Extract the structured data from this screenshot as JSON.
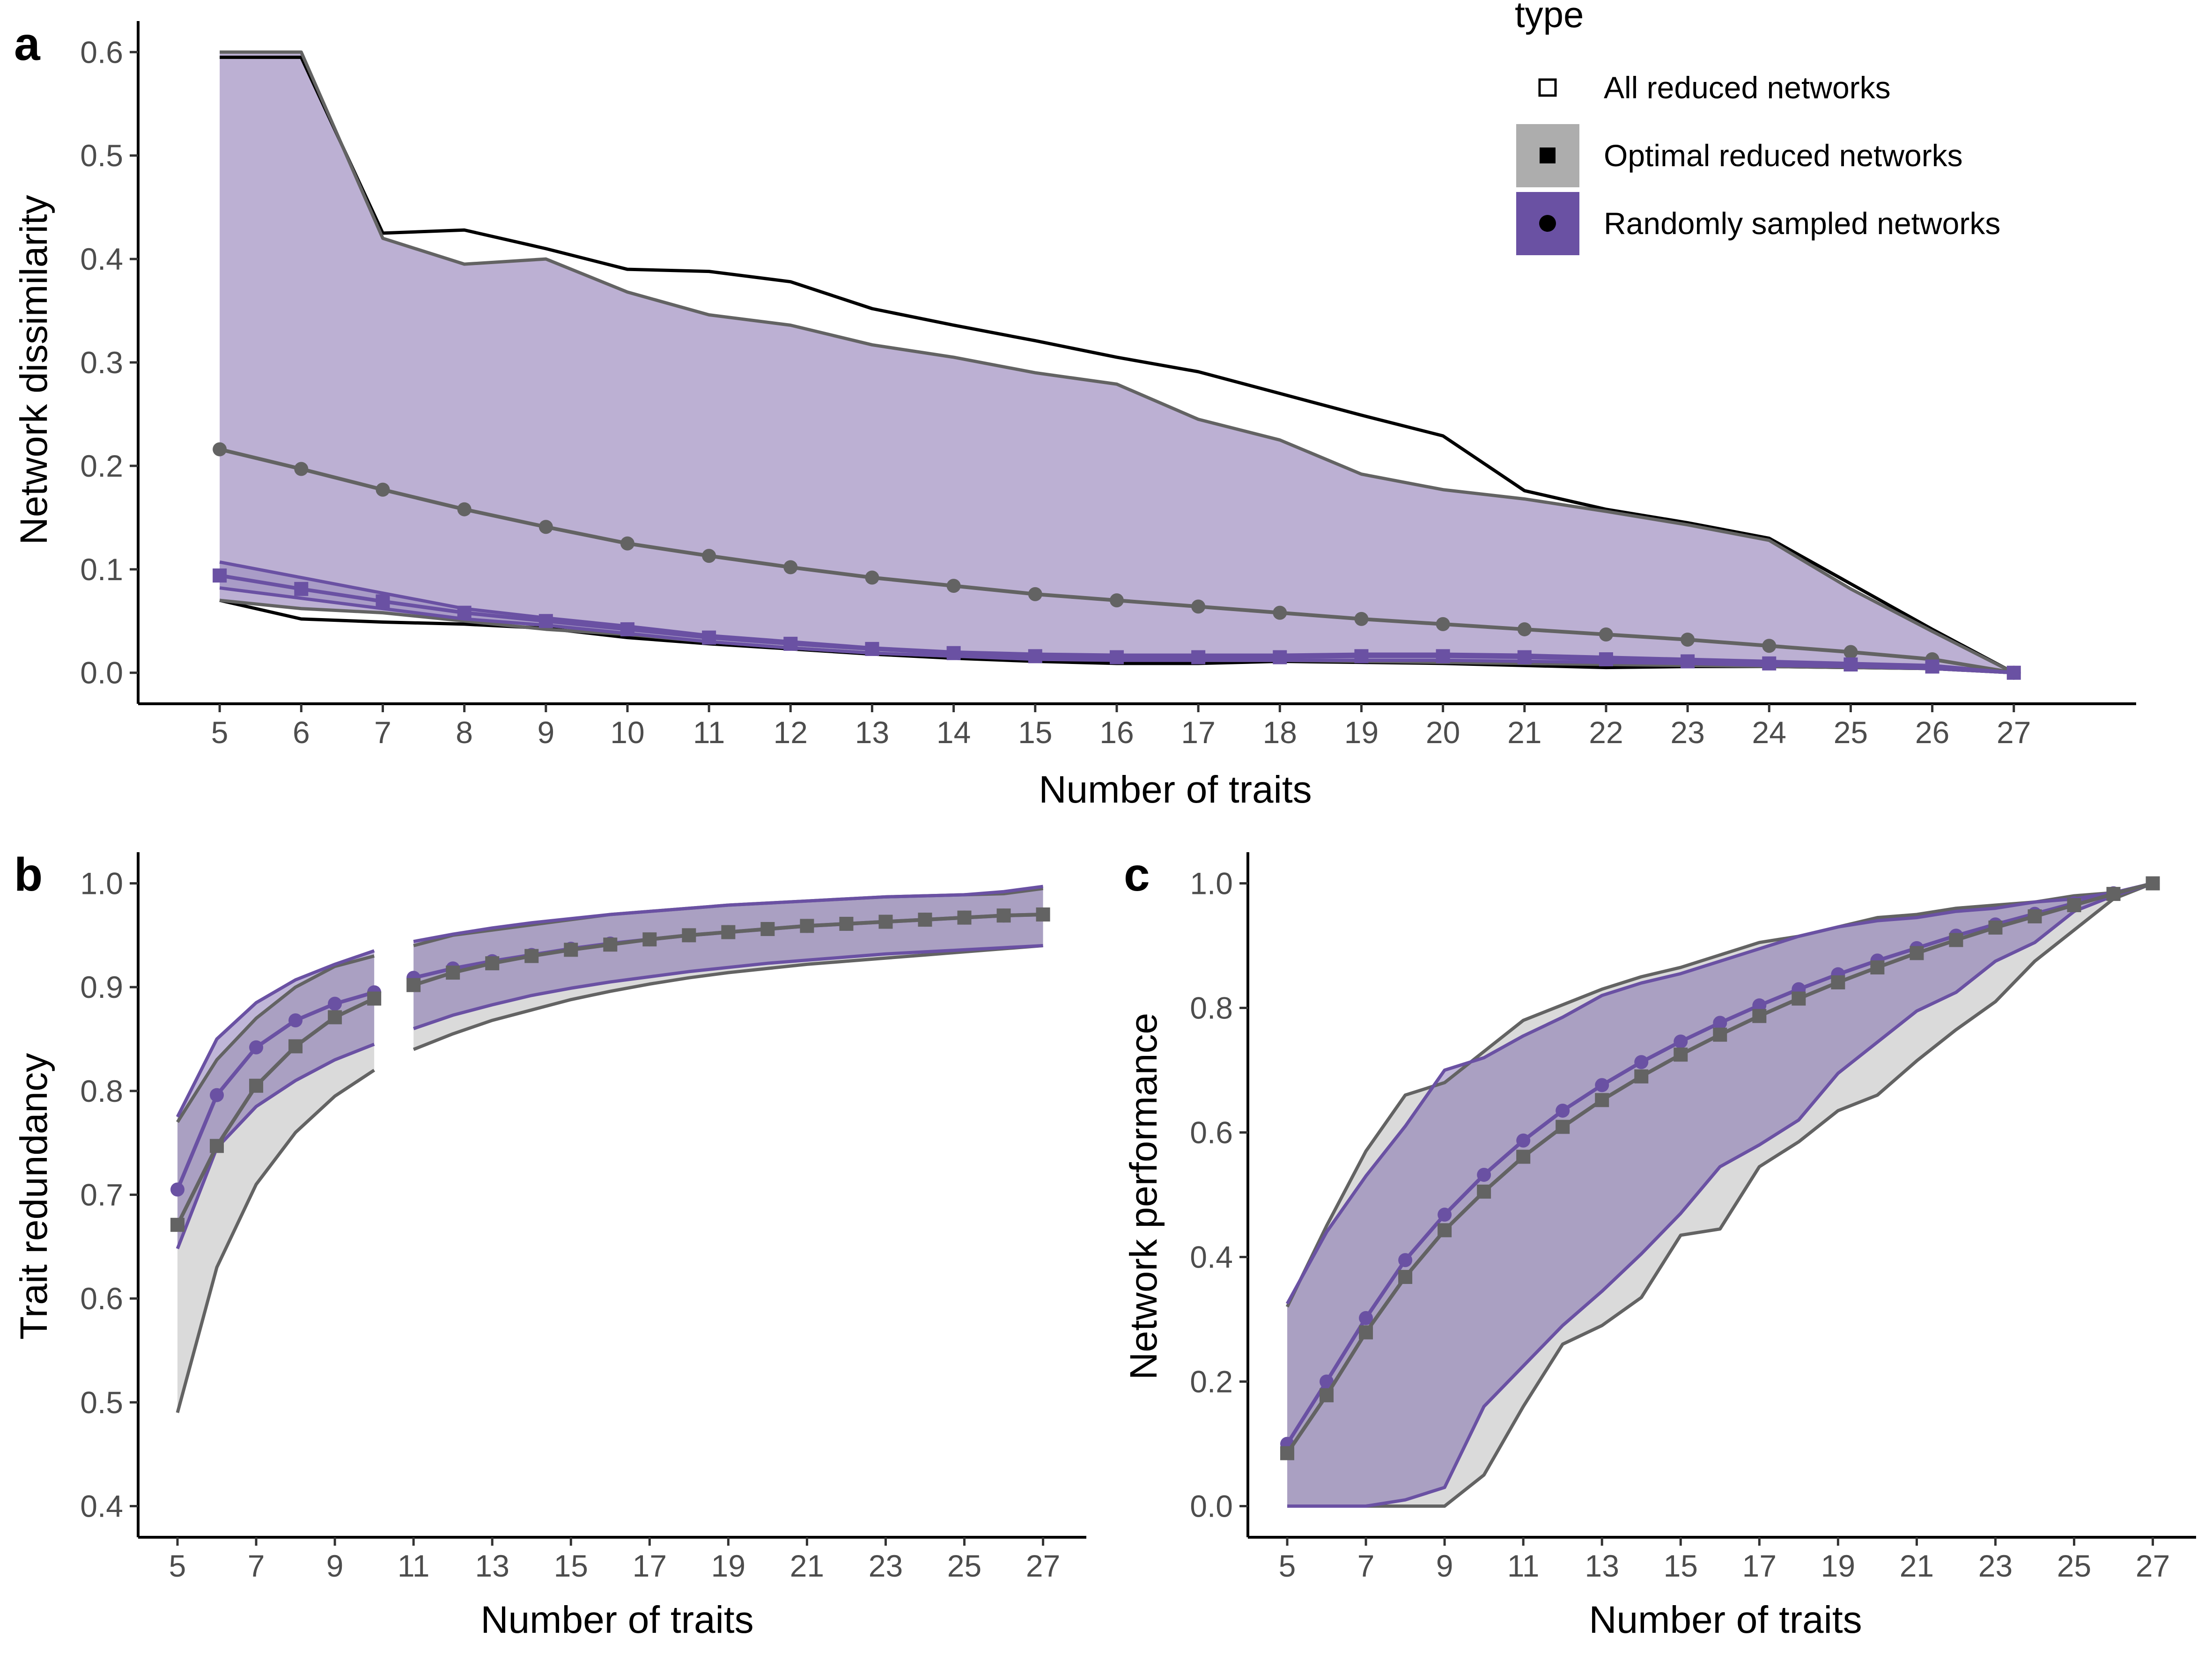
{
  "legend": {
    "title": "type",
    "items": [
      {
        "label": "All reduced networks",
        "shape": "square-open",
        "fill": "#ffffff"
      },
      {
        "label": "Optimal reduced networks",
        "shape": "square",
        "fill": "#adadad"
      },
      {
        "label": "Randomly sampled networks",
        "shape": "circle",
        "fill": "#6a51a3"
      }
    ]
  },
  "colors": {
    "grey_line": "#636363",
    "black_line": "#000000",
    "purple_line": "#6a51a3",
    "purple_fill": "#bcb0d3",
    "grey_fill": "#dadada"
  },
  "chart_data": [
    {
      "panel_label": "a",
      "type": "line",
      "xlabel": "Number of traits",
      "ylabel": "Network dissimilarity",
      "xlim": [
        4,
        28.5
      ],
      "ylim": [
        -0.03,
        0.63
      ],
      "x_ticks": [
        5,
        6,
        7,
        8,
        9,
        10,
        11,
        12,
        13,
        14,
        15,
        16,
        17,
        18,
        19,
        20,
        21,
        22,
        23,
        24,
        25,
        26,
        27
      ],
      "y_ticks": [
        0.0,
        0.1,
        0.2,
        0.3,
        0.4,
        0.5,
        0.6
      ],
      "y_tick_labels": [
        "0.0",
        "0.1",
        "0.2",
        "0.3",
        "0.4",
        "0.5",
        "0.6"
      ],
      "x": [
        5,
        6,
        7,
        8,
        9,
        10,
        11,
        12,
        13,
        14,
        15,
        16,
        17,
        18,
        19,
        20,
        21,
        22,
        23,
        24,
        25,
        26,
        27
      ],
      "all_reduced_upper": [
        0.595,
        0.595,
        0.425,
        0.428,
        0.41,
        0.39,
        0.388,
        0.378,
        0.352,
        0.336,
        0.321,
        0.305,
        0.291,
        0.27,
        0.249,
        0.229,
        0.176,
        0.158,
        0.145,
        0.13,
        0.086,
        0.042,
        0.0
      ],
      "all_reduced_lower": [
        0.07,
        0.052,
        0.049,
        0.047,
        0.043,
        0.034,
        0.028,
        0.023,
        0.018,
        0.014,
        0.011,
        0.009,
        0.009,
        0.011,
        0.01,
        0.009,
        0.007,
        0.005,
        0.006,
        0.006,
        0.005,
        0.004,
        0.0
      ],
      "random_upper": [
        0.6,
        0.6,
        0.42,
        0.395,
        0.4,
        0.368,
        0.346,
        0.336,
        0.317,
        0.305,
        0.29,
        0.279,
        0.245,
        0.225,
        0.192,
        0.177,
        0.168,
        0.156,
        0.143,
        0.128,
        0.081,
        0.04,
        0.0
      ],
      "random_lower": [
        0.07,
        0.062,
        0.058,
        0.05,
        0.042,
        0.037,
        0.03,
        0.024,
        0.019,
        0.016,
        0.014,
        0.013,
        0.012,
        0.012,
        0.011,
        0.01,
        0.009,
        0.008,
        0.007,
        0.006,
        0.005,
        0.004,
        0.0
      ],
      "optimal_upper": [
        0.107,
        0.092,
        0.077,
        0.062,
        0.053,
        0.045,
        0.036,
        0.03,
        0.024,
        0.02,
        0.018,
        0.017,
        0.017,
        0.017,
        0.018,
        0.018,
        0.017,
        0.015,
        0.013,
        0.011,
        0.009,
        0.007,
        0.0
      ],
      "optimal_lower": [
        0.082,
        0.072,
        0.062,
        0.052,
        0.046,
        0.038,
        0.03,
        0.024,
        0.019,
        0.016,
        0.013,
        0.012,
        0.012,
        0.012,
        0.012,
        0.012,
        0.011,
        0.01,
        0.009,
        0.007,
        0.006,
        0.004,
        0.0
      ],
      "series": [
        {
          "type_ref": "Randomly sampled networks",
          "marker": "circle",
          "color": "#636363",
          "values": [
            0.216,
            0.197,
            0.177,
            0.158,
            0.141,
            0.125,
            0.113,
            0.102,
            0.092,
            0.084,
            0.076,
            0.07,
            0.064,
            0.058,
            0.052,
            0.047,
            0.042,
            0.037,
            0.032,
            0.026,
            0.02,
            0.013,
            0.0
          ]
        },
        {
          "type_ref": "Optimal reduced networks",
          "marker": "square",
          "color": "#6a51a3",
          "values": [
            0.094,
            0.081,
            0.069,
            0.058,
            0.05,
            0.042,
            0.034,
            0.028,
            0.023,
            0.019,
            0.016,
            0.015,
            0.015,
            0.015,
            0.016,
            0.016,
            0.015,
            0.013,
            0.011,
            0.009,
            0.008,
            0.006,
            0.0
          ]
        }
      ]
    },
    {
      "panel_label": "b",
      "type": "line",
      "xlabel": "Number of traits",
      "ylabel": "Trait redundancy",
      "xlim": [
        4,
        28.1
      ],
      "ylim": [
        0.37,
        1.03
      ],
      "x_ticks": [
        5,
        7,
        9,
        11,
        13,
        15,
        17,
        19,
        21,
        23,
        25,
        27
      ],
      "y_ticks": [
        0.4,
        0.5,
        0.6,
        0.7,
        0.8,
        0.9,
        1.0
      ],
      "y_tick_labels": [
        "0.4",
        "0.5",
        "0.6",
        "0.7",
        "0.8",
        "0.9",
        "1.0"
      ],
      "x": [
        5,
        6,
        7,
        8,
        9,
        10,
        11,
        12,
        13,
        14,
        15,
        16,
        17,
        18,
        19,
        20,
        21,
        22,
        23,
        24,
        25,
        26,
        27
      ],
      "all_reduced_upper": [
        0.77,
        0.83,
        0.87,
        0.9,
        0.92,
        0.93,
        0.94,
        0.95,
        0.955,
        0.96,
        0.965,
        0.97,
        0.973,
        0.976,
        0.979,
        0.981,
        0.983,
        0.985,
        0.987,
        0.988,
        0.989,
        0.99,
        0.995
      ],
      "all_reduced_lower": [
        0.49,
        0.63,
        0.71,
        0.76,
        0.795,
        0.82,
        0.84,
        0.855,
        0.868,
        0.878,
        0.888,
        0.896,
        0.903,
        0.909,
        0.914,
        0.918,
        0.922,
        0.925,
        0.928,
        0.931,
        0.934,
        0.937,
        0.94
      ],
      "random_upper": [
        0.775,
        0.85,
        0.885,
        0.907,
        0.922,
        0.935,
        0.944,
        0.951,
        0.957,
        0.962,
        0.966,
        0.97,
        0.973,
        0.976,
        0.979,
        0.981,
        0.983,
        0.985,
        0.987,
        0.988,
        0.989,
        0.992,
        0.997
      ],
      "random_lower": [
        0.648,
        0.745,
        0.785,
        0.81,
        0.83,
        0.845,
        0.86,
        0.873,
        0.883,
        0.892,
        0.899,
        0.905,
        0.91,
        0.915,
        0.919,
        0.923,
        0.926,
        0.929,
        0.932,
        0.934,
        0.936,
        0.938,
        0.94
      ],
      "gap_between": [
        10,
        11
      ],
      "series": [
        {
          "type_ref": "Randomly sampled networks",
          "marker": "circle",
          "color": "#6a51a3",
          "values": [
            0.705,
            0.796,
            0.842,
            0.868,
            0.884,
            0.895,
            0.909,
            0.918,
            0.925,
            0.931,
            0.937,
            0.942,
            0.946,
            0.95,
            0.953,
            0.956,
            0.959,
            0.961,
            0.963,
            0.965,
            0.967,
            0.969,
            0.97
          ]
        },
        {
          "type_ref": "Optimal reduced networks",
          "marker": "square",
          "color": "#636363",
          "values": [
            0.671,
            0.747,
            0.805,
            0.843,
            0.871,
            0.889,
            0.902,
            0.914,
            0.923,
            0.93,
            0.936,
            0.941,
            0.946,
            0.95,
            0.953,
            0.956,
            0.959,
            0.961,
            0.963,
            0.965,
            0.967,
            0.969,
            0.97
          ]
        }
      ]
    },
    {
      "panel_label": "c",
      "type": "line",
      "xlabel": "Number of traits",
      "ylabel": "Network performance",
      "xlim": [
        4,
        28.1
      ],
      "ylim": [
        -0.05,
        1.05
      ],
      "x_ticks": [
        5,
        7,
        9,
        11,
        13,
        15,
        17,
        19,
        21,
        23,
        25,
        27
      ],
      "y_ticks": [
        0.0,
        0.2,
        0.4,
        0.6,
        0.8,
        1.0
      ],
      "y_tick_labels": [
        "0.0",
        "0.2",
        "0.4",
        "0.6",
        "0.8",
        "1.0"
      ],
      "x": [
        5,
        6,
        7,
        8,
        9,
        10,
        11,
        12,
        13,
        14,
        15,
        16,
        17,
        18,
        19,
        20,
        21,
        22,
        23,
        24,
        25,
        26,
        27
      ],
      "all_reduced_upper": [
        0.32,
        0.45,
        0.57,
        0.66,
        0.68,
        0.73,
        0.78,
        0.805,
        0.83,
        0.85,
        0.865,
        0.885,
        0.905,
        0.915,
        0.93,
        0.945,
        0.95,
        0.96,
        0.965,
        0.97,
        0.98,
        0.985,
        1.0
      ],
      "all_reduced_lower": [
        0.0,
        0.0,
        0.0,
        0.0,
        0.0,
        0.05,
        0.16,
        0.26,
        0.29,
        0.335,
        0.435,
        0.445,
        0.545,
        0.585,
        0.635,
        0.66,
        0.715,
        0.765,
        0.81,
        0.875,
        0.925,
        0.975,
        1.0
      ],
      "random_upper": [
        0.325,
        0.44,
        0.53,
        0.61,
        0.7,
        0.72,
        0.755,
        0.785,
        0.82,
        0.84,
        0.855,
        0.875,
        0.895,
        0.915,
        0.93,
        0.94,
        0.945,
        0.955,
        0.96,
        0.97,
        0.975,
        0.985,
        1.0
      ],
      "random_lower": [
        0.0,
        0.0,
        0.0,
        0.01,
        0.03,
        0.16,
        0.225,
        0.29,
        0.345,
        0.405,
        0.47,
        0.545,
        0.58,
        0.62,
        0.695,
        0.745,
        0.795,
        0.825,
        0.875,
        0.905,
        0.955,
        0.98,
        1.0
      ],
      "series": [
        {
          "type_ref": "Randomly sampled networks",
          "marker": "circle",
          "color": "#6a51a3",
          "values": [
            0.1,
            0.2,
            0.302,
            0.395,
            0.468,
            0.532,
            0.587,
            0.635,
            0.676,
            0.713,
            0.746,
            0.776,
            0.804,
            0.83,
            0.854,
            0.876,
            0.896,
            0.916,
            0.934,
            0.951,
            0.968,
            0.984,
            1.0
          ]
        },
        {
          "type_ref": "Optimal reduced networks",
          "marker": "square",
          "color": "#636363",
          "values": [
            0.085,
            0.178,
            0.279,
            0.368,
            0.443,
            0.505,
            0.561,
            0.609,
            0.652,
            0.69,
            0.725,
            0.757,
            0.787,
            0.815,
            0.841,
            0.865,
            0.888,
            0.909,
            0.929,
            0.947,
            0.965,
            0.983,
            1.0
          ]
        }
      ]
    }
  ]
}
